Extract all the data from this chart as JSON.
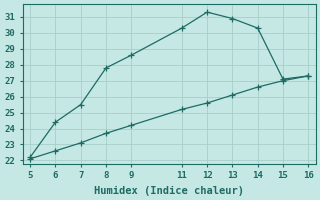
{
  "xlabel": "Humidex (Indice chaleur)",
  "xlim": [
    4.7,
    16.3
  ],
  "ylim": [
    21.8,
    31.8
  ],
  "xticks": [
    5,
    6,
    7,
    8,
    9,
    11,
    12,
    13,
    14,
    15,
    16
  ],
  "yticks": [
    22,
    23,
    24,
    25,
    26,
    27,
    28,
    29,
    30,
    31
  ],
  "bg_color": "#c5e8e5",
  "grid_color": "#a8ceca",
  "line_color": "#1e6b63",
  "line1_x": [
    5,
    6,
    7,
    8,
    9,
    11,
    12,
    13,
    14,
    15,
    16
  ],
  "line1_y": [
    22.2,
    24.4,
    25.5,
    27.8,
    28.6,
    30.3,
    31.3,
    30.9,
    30.3,
    27.1,
    27.3
  ],
  "line1_marker_x": [
    5,
    6,
    7,
    8,
    9,
    11,
    12,
    13,
    14,
    15,
    16
  ],
  "line1_marker_y": [
    22.2,
    24.4,
    25.5,
    27.8,
    28.6,
    30.3,
    31.3,
    30.9,
    30.3,
    27.1,
    27.3
  ],
  "line2_x": [
    5,
    6,
    7,
    8,
    9,
    11,
    12,
    13,
    14,
    15,
    16
  ],
  "line2_y": [
    22.1,
    22.6,
    23.1,
    23.7,
    24.2,
    25.2,
    25.6,
    26.1,
    26.6,
    27.0,
    27.3
  ],
  "font_color": "#1e6b63",
  "fontsize_tick": 6.5,
  "fontsize_label": 7.5
}
